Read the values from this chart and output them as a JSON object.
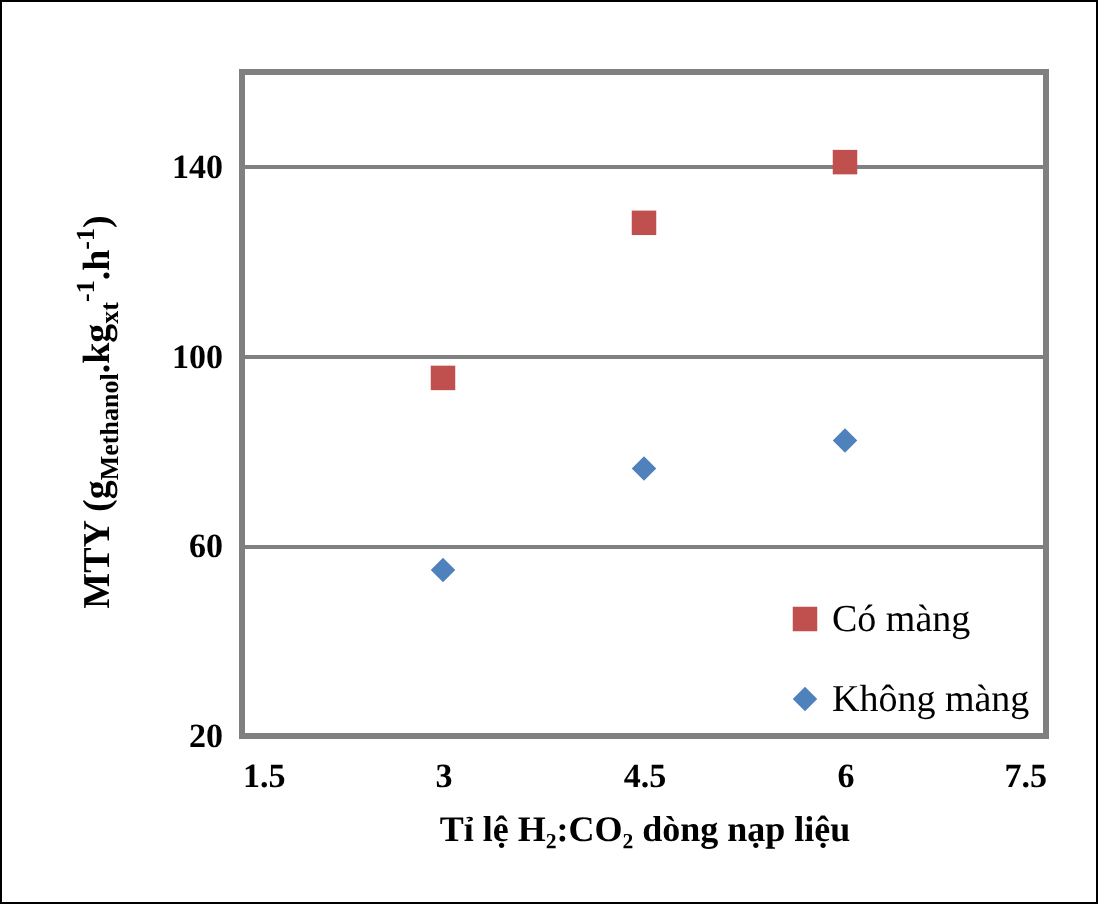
{
  "chart_data": {
    "type": "scatter",
    "xlabel": "Tỉ lệ H₂:CO₂ dòng nạp liệu",
    "ylabel": "MTY (g$_{Methanol}$.kg$_{xt}$$^{-1}$.h$^{-1}$)",
    "x": [
      3,
      4.5,
      6
    ],
    "series": [
      {
        "name": "Có màng",
        "color": "#c0504d",
        "marker": "square",
        "values": [
          95.5,
          128.2,
          141
        ]
      },
      {
        "name": "Không màng",
        "color": "#4f81bd",
        "marker": "diamond",
        "values": [
          55,
          76.4,
          82.3
        ]
      }
    ],
    "xlim": [
      1.5,
      7.5
    ],
    "xticks": [
      1.5,
      3,
      4.5,
      6,
      7.5
    ],
    "ylim": [
      20,
      160
    ],
    "yticks": [
      20,
      60,
      100,
      140
    ],
    "grid": "y",
    "legend": "bottom right"
  }
}
